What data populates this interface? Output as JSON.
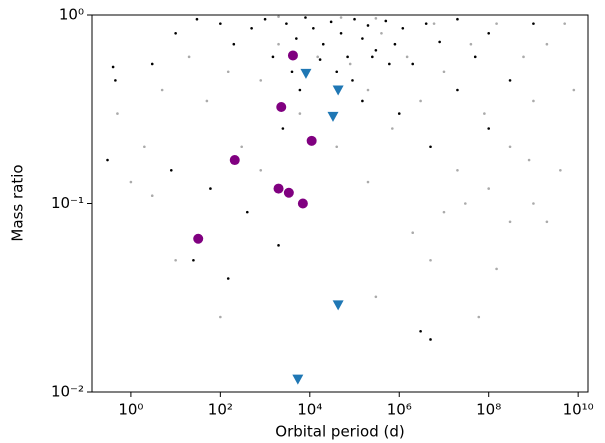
{
  "chart_data": {
    "type": "scatter",
    "xlabel": "Orbital period (d)",
    "ylabel": "Mass ratio",
    "xscale": "log",
    "yscale": "log",
    "xlim": [
      0.135,
      16600000000.0
    ],
    "ylim": [
      0.01,
      1
    ],
    "xticks": [
      {
        "value": 1,
        "label": "10⁰"
      },
      {
        "value": 100,
        "label": "10²"
      },
      {
        "value": 10000,
        "label": "10⁴"
      },
      {
        "value": 1000000,
        "label": "10⁶"
      },
      {
        "value": 100000000,
        "label": "10⁸"
      },
      {
        "value": 10000000000,
        "label": "10¹⁰"
      }
    ],
    "yticks": [
      {
        "value": 0.01,
        "label": "10⁻²"
      },
      {
        "value": 0.1,
        "label": "10⁻¹"
      },
      {
        "value": 1,
        "label": "10⁰"
      }
    ],
    "series": [
      {
        "color": "#aaaaaa",
        "marker": "dot",
        "x": [
          0.5,
          2,
          5,
          20,
          50,
          150,
          300,
          800,
          2000,
          6000,
          15000,
          40000,
          80000,
          200000,
          400000,
          700000,
          1500000,
          3000000,
          6000000,
          10000000,
          20000000,
          40000000,
          80000000,
          150000000,
          300000000,
          600000000,
          1000000000,
          2000000000,
          4000000000,
          8000000000,
          5000000000,
          10000000,
          30000000,
          100000000,
          300000000,
          1000000000,
          2000000000,
          5000000,
          150000000,
          300000,
          60000000,
          100,
          10,
          3,
          1,
          800,
          200000,
          2000000,
          800000000,
          50000,
          2000,
          300000
        ],
        "y": [
          0.3,
          0.2,
          0.4,
          0.6,
          0.35,
          0.5,
          0.2,
          0.45,
          0.7,
          0.3,
          0.6,
          0.2,
          0.55,
          0.4,
          0.8,
          0.25,
          0.6,
          0.35,
          0.9,
          0.5,
          0.15,
          0.7,
          0.3,
          0.9,
          0.2,
          0.6,
          0.35,
          0.7,
          0.15,
          0.4,
          0.9,
          0.09,
          0.1,
          0.12,
          0.08,
          0.1,
          0.08,
          0.05,
          0.045,
          0.032,
          0.025,
          0.025,
          0.05,
          0.11,
          0.13,
          0.15,
          0.13,
          0.07,
          0.17,
          0.97,
          0.98,
          0.96
        ]
      },
      {
        "color": "#000000",
        "marker": "dot",
        "x": [
          0.4,
          0.45,
          3,
          10,
          30,
          100,
          200,
          500,
          1000,
          1500,
          3000,
          5000,
          8000,
          12000,
          20000,
          30000,
          50000,
          70000,
          100000,
          150000,
          200000,
          300000,
          500000,
          800000,
          1200000,
          2000000,
          4000000,
          8000000,
          20000000,
          50000000,
          100000000,
          300000000,
          1000000000,
          0.3,
          8,
          60,
          400,
          2500,
          6000,
          40000,
          150000,
          1000000,
          5000000,
          20000000,
          100000000,
          2000,
          150,
          3000000,
          5000000,
          25,
          4000,
          90000,
          600000,
          250000,
          17000
        ],
        "y": [
          0.53,
          0.45,
          0.55,
          0.8,
          0.95,
          0.9,
          0.7,
          0.85,
          0.95,
          0.6,
          0.9,
          0.75,
          0.97,
          0.85,
          0.7,
          0.92,
          0.8,
          0.6,
          0.95,
          0.75,
          0.88,
          0.65,
          0.93,
          0.7,
          0.85,
          0.55,
          0.9,
          0.72,
          0.95,
          0.6,
          0.8,
          0.45,
          0.9,
          0.17,
          0.15,
          0.12,
          0.09,
          0.25,
          0.4,
          0.5,
          0.35,
          0.3,
          0.2,
          0.4,
          0.25,
          0.06,
          0.04,
          0.021,
          0.019,
          0.05,
          0.5,
          0.45,
          0.55,
          0.6,
          0.58
        ]
      },
      {
        "color": "#800080",
        "marker": "circle",
        "x": [
          4200,
          2300,
          210,
          11000,
          2000,
          3400,
          7000,
          32
        ],
        "y": [
          0.61,
          0.325,
          0.17,
          0.215,
          0.12,
          0.114,
          0.1,
          0.065
        ]
      },
      {
        "color": "#1f77b4",
        "marker": "triangle-down",
        "x": [
          8200,
          43000,
          33000,
          43000,
          5400
        ],
        "y": [
          0.49,
          0.4,
          0.29,
          0.029,
          0.0117
        ]
      }
    ]
  }
}
